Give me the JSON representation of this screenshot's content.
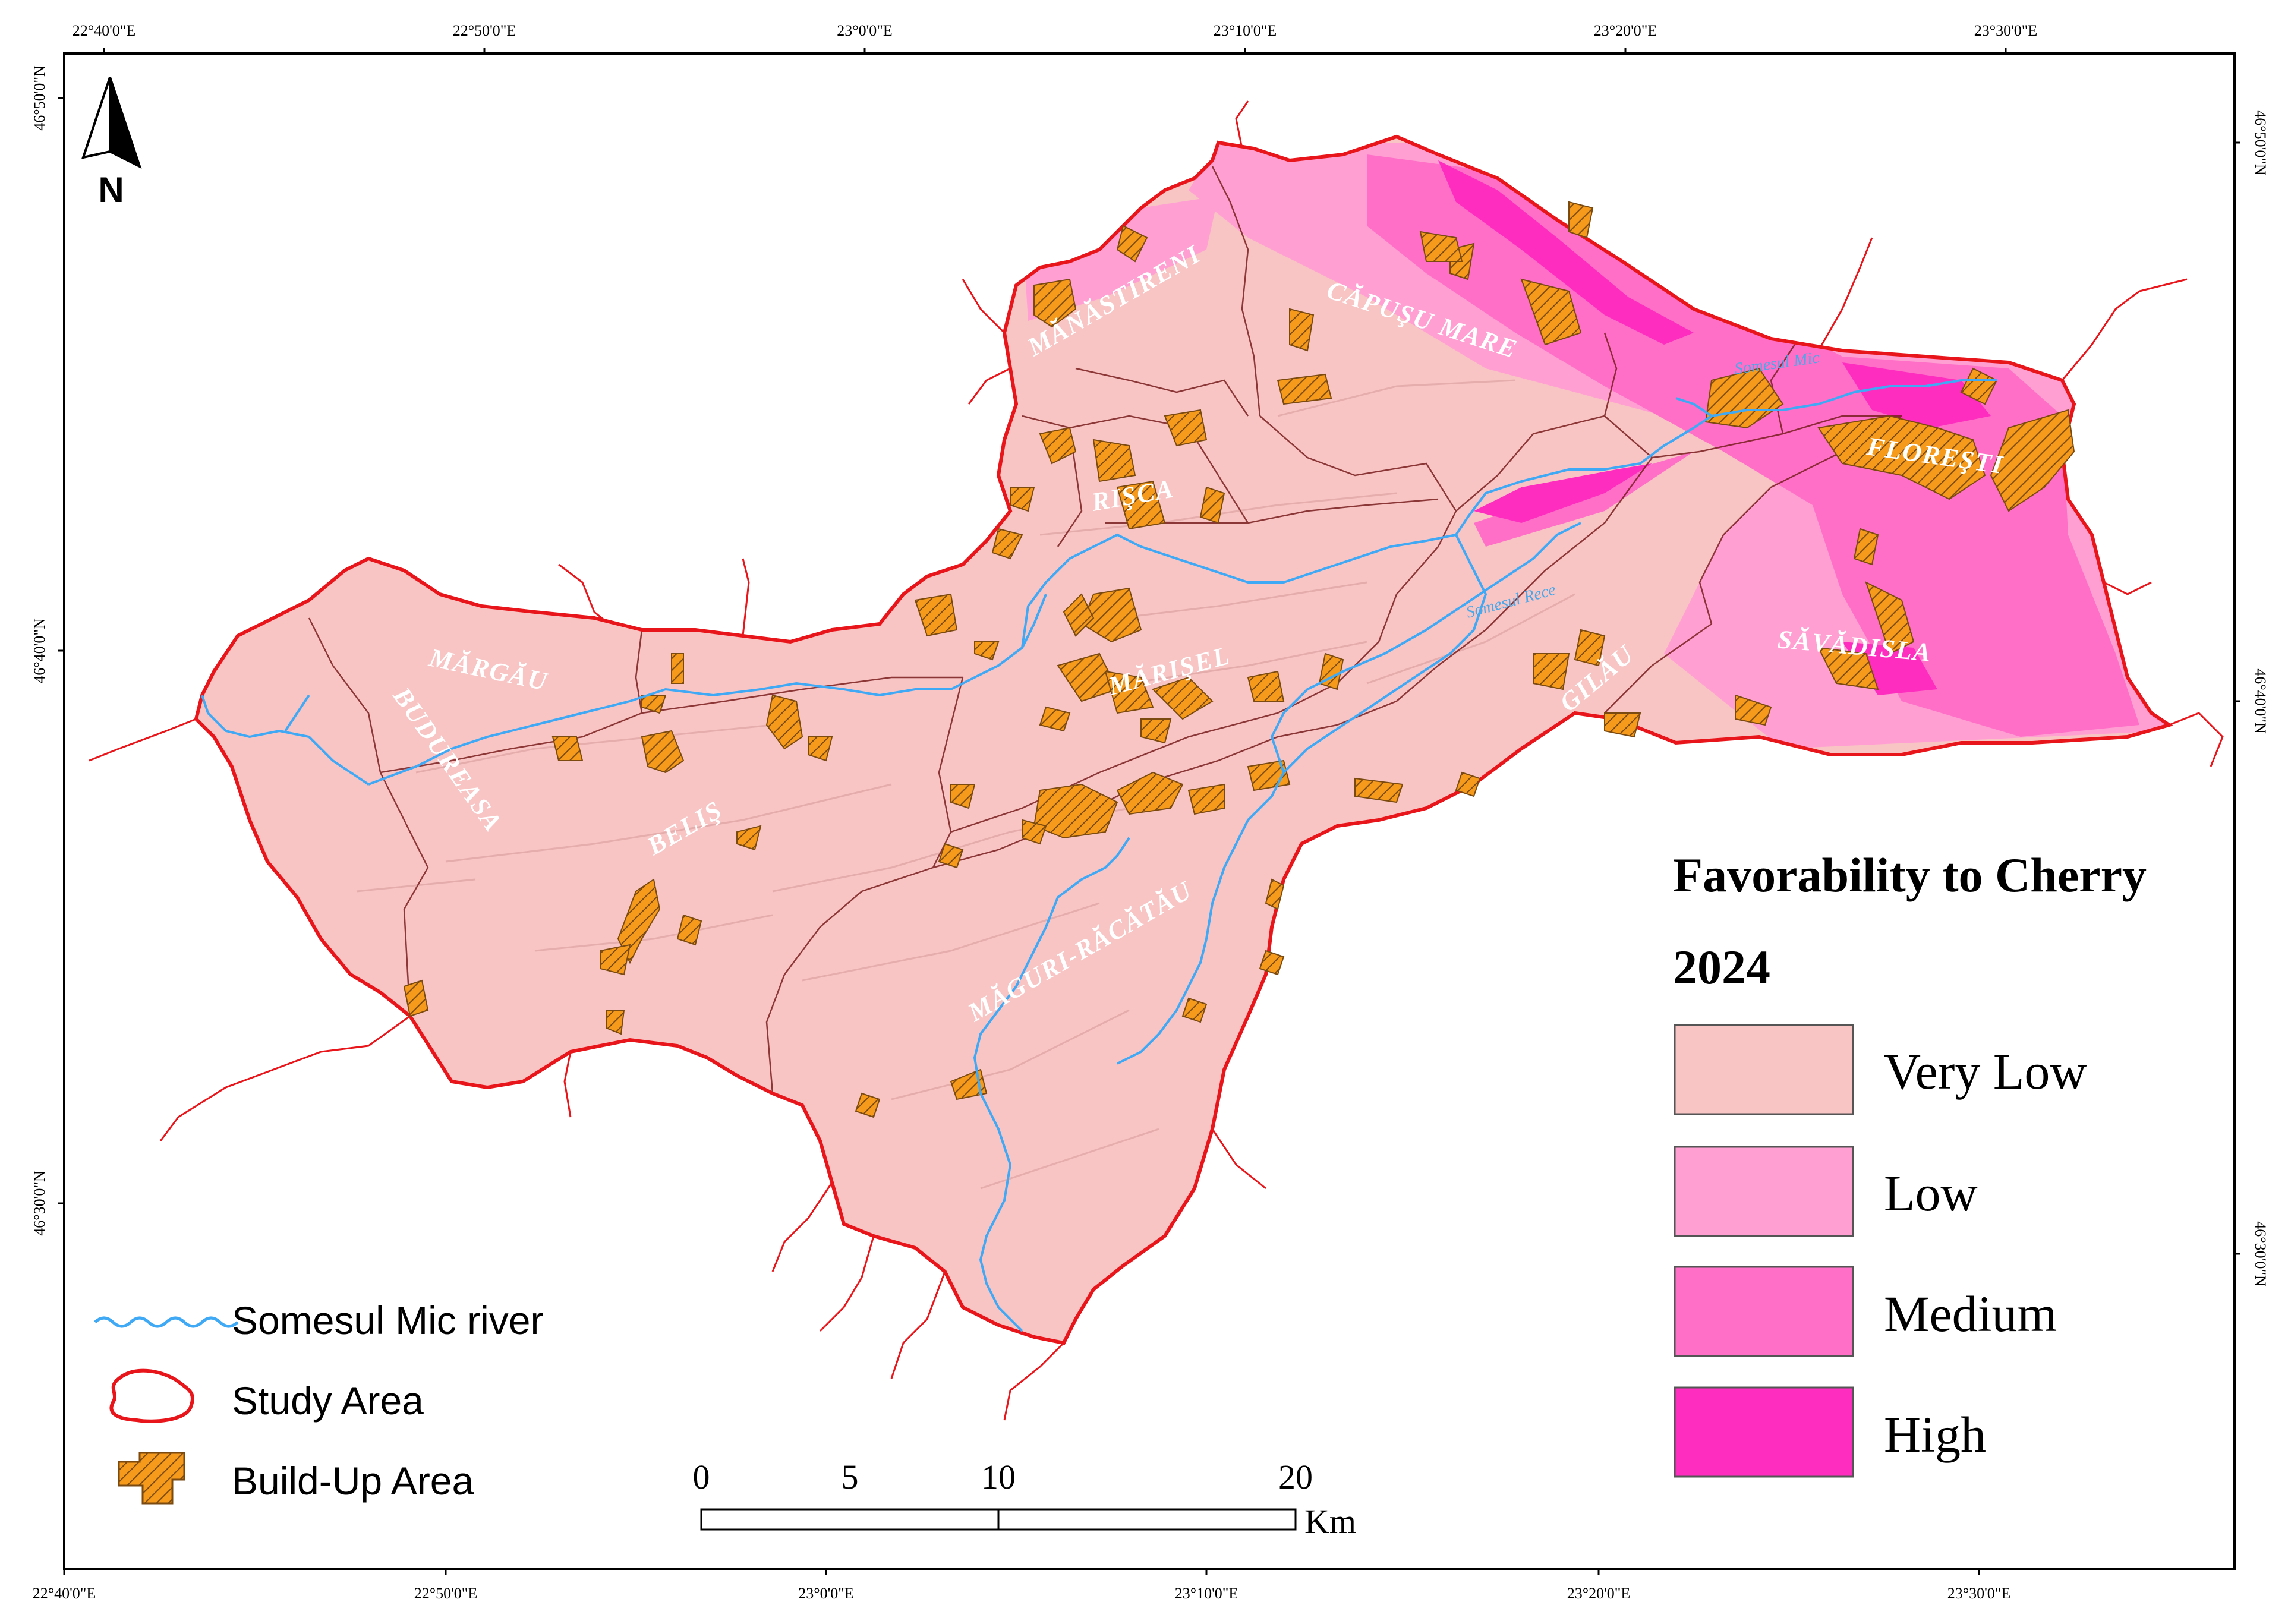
{
  "map": {
    "title_line1": "Favorability to Cherry",
    "title_line2": "2024",
    "north_label": "N",
    "colors": {
      "very_low": "#f8c4c4",
      "low": "#ff9fd2",
      "medium": "#ff6fc8",
      "high": "#ff2cc0",
      "study_area_outline": "#e8161b",
      "river": "#3fa9f5",
      "buildup_fill": "#f59a1a",
      "buildup_hatch": "#7a4a10"
    },
    "classes": [
      {
        "label": "Very Low",
        "color": "#f8c4c4"
      },
      {
        "label": "Low",
        "color": "#ff9fd2"
      },
      {
        "label": "Medium",
        "color": "#ff6fc8"
      },
      {
        "label": "High",
        "color": "#ff2cc0"
      }
    ],
    "legend": {
      "river": "Somesul Mic river",
      "study_area": "Study Area",
      "buildup": "Build-Up Area"
    },
    "scale": {
      "ticks": [
        "0",
        "5",
        "10",
        "20"
      ],
      "unit": "Km"
    },
    "top_ticks": [
      "22°40'0\"E",
      "22°50'0\"E",
      "23°0'0\"E",
      "23°10'0\"E",
      "23°20'0\"E",
      "23°30'0\"E"
    ],
    "bottom_ticks": [
      "22°40'0\"E",
      "22°50'0\"E",
      "23°0'0\"E",
      "23°10'0\"E",
      "23°20'0\"E",
      "23°30'0\"E"
    ],
    "left_ticks": [
      "46°50'0\"N",
      "46°40'0\"N",
      "46°30'0\"N"
    ],
    "right_ticks": [
      "46°50'0\"N",
      "46°40'0\"N",
      "46°30'0\"N"
    ],
    "municipalities": [
      "MĂNĂSTIRENI",
      "CĂPUŞU MARE",
      "RIŞCA",
      "FLOREŞTI",
      "MĂRGĂU",
      "MĂRIŞEL",
      "SĂVĂDISLA",
      "GILĂU",
      "BUDUREASA",
      "BELIŞ",
      "MĂGURI-RĂCĂTĂU"
    ],
    "river_labels": [
      "Somesul Mic",
      "Somesul Rece"
    ]
  }
}
